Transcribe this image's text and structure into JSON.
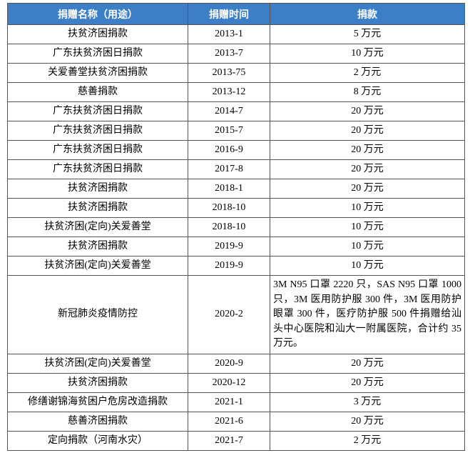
{
  "table": {
    "header": [
      "捐赠名称（用途）",
      "捐赠时间",
      "捐款"
    ],
    "rows": [
      [
        "扶贫济困捐款",
        "2013-1",
        "5 万元"
      ],
      [
        "广东扶贫济困日捐款",
        "2013-7",
        "10 万元"
      ],
      [
        "关爱善堂扶贫济困捐款",
        "2013-75",
        "2 万元"
      ],
      [
        "慈善捐款",
        "2013-12",
        "8 万元"
      ],
      [
        "广东扶贫济困日捐款",
        "2014-7",
        "20 万元"
      ],
      [
        "广东扶贫济困日捐款",
        "2015-7",
        "20 万元"
      ],
      [
        "广东扶贫济困日捐款",
        "2016-9",
        "20 万元"
      ],
      [
        "广东扶贫济困日捐款",
        "2017-8",
        "20 万元"
      ],
      [
        "扶贫济困捐款",
        "2018-1",
        "20 万元"
      ],
      [
        "扶贫济困捐款",
        "2018-10",
        "10 万元"
      ],
      [
        "扶贫济困(定向)关爱善堂",
        "2018-10",
        "10 万元"
      ],
      [
        "扶贫济困捐款",
        "2019-9",
        "10 万元"
      ],
      [
        "扶贫济困(定向)关爱善堂",
        "2019-9",
        "10 万元"
      ],
      [
        "新冠肺炎疫情防控",
        "2020-2",
        "3M N95 口罩 2220 只，SAS N95 口罩 1000 只，3M 医用防护服 300 件，3M 医用防护眼罩 300 件，医疗防护服 500 件捐赠给汕头中心医院和汕大一附属医院，合计约 35 万元。"
      ],
      [
        "扶贫济困(定向)关爱善堂",
        "2020-9",
        "20 万元"
      ],
      [
        "扶贫济困捐款",
        "2020-12",
        "20 万元"
      ],
      [
        "修缮谢锦海贫困户危房改造捐款",
        "2021-1",
        "3 万元"
      ],
      [
        "慈善济困捐款",
        "2021-6",
        "20 万元"
      ],
      [
        "定向捐款（河南水灾）",
        "2021-7",
        "2 万元"
      ]
    ]
  }
}
